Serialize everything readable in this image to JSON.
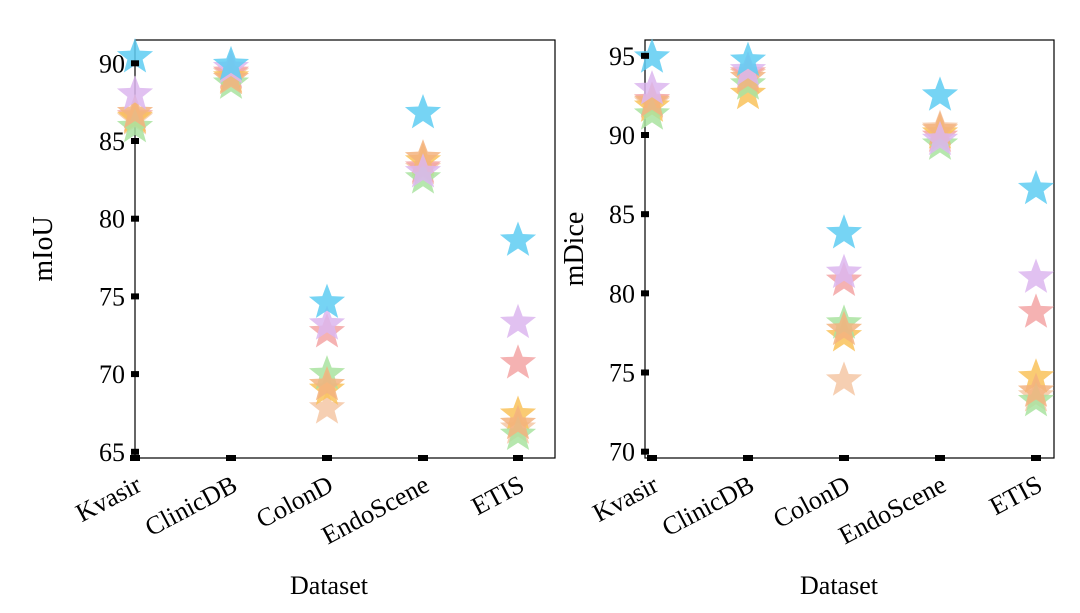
{
  "chart_data": [
    {
      "type": "scatter",
      "xlabel": "Dataset",
      "ylabel": "mIoU",
      "categories": [
        "Kvasir",
        "ClinicDB",
        "ColonD",
        "EndoScene",
        "ETIS"
      ],
      "yticks": [
        65,
        70,
        75,
        80,
        85,
        90
      ],
      "ylim": [
        64.6,
        91.5
      ],
      "grid": false,
      "series": [
        {
          "name": "",
          "color": "#f5c7a5",
          "values": [
            86.4,
            89.3,
            67.8,
            83.2,
            66.5
          ]
        },
        {
          "name": "",
          "color": "#f3a5a5",
          "values": [
            86.6,
            89.4,
            72.7,
            83.3,
            70.7
          ]
        },
        {
          "name": "",
          "color": "#f9c25a",
          "values": [
            86.5,
            89.1,
            69.0,
            83.7,
            67.4
          ]
        },
        {
          "name": "",
          "color": "#a9e3a0",
          "values": [
            85.9,
            88.7,
            70.0,
            82.6,
            66.1
          ]
        },
        {
          "name": "",
          "color": "#f3b37f",
          "values": [
            86.8,
            89.0,
            69.3,
            83.9,
            66.8
          ]
        },
        {
          "name": "",
          "color": "#dcb6ef",
          "values": [
            88.0,
            89.7,
            73.2,
            83.0,
            73.3
          ]
        },
        {
          "name": "",
          "color": "#5ecdf2",
          "values": [
            90.4,
            89.9,
            74.6,
            86.8,
            78.6
          ]
        }
      ]
    },
    {
      "type": "scatter",
      "xlabel": "Dataset",
      "ylabel": "mDice",
      "categories": [
        "Kvasir",
        "ClinicDB",
        "ColonD",
        "EndoScene",
        "ETIS"
      ],
      "yticks": [
        70,
        75,
        80,
        85,
        90,
        95
      ],
      "ylim": [
        69.6,
        96.0
      ],
      "grid": false,
      "series": [
        {
          "name": "",
          "color": "#f5c7a5",
          "values": [
            92.0,
            93.8,
            74.5,
            90.4,
            73.5
          ]
        },
        {
          "name": "",
          "color": "#f3a5a5",
          "values": [
            92.2,
            93.9,
            80.8,
            89.9,
            78.8
          ]
        },
        {
          "name": "",
          "color": "#f9c25a",
          "values": [
            91.8,
            92.6,
            77.3,
            90.1,
            74.7
          ]
        },
        {
          "name": "",
          "color": "#a9e3a0",
          "values": [
            91.3,
            93.2,
            78.1,
            89.4,
            73.2
          ]
        },
        {
          "name": "",
          "color": "#f3b37f",
          "values": [
            92.1,
            93.6,
            77.7,
            90.3,
            73.8
          ]
        },
        {
          "name": "",
          "color": "#dcb6ef",
          "values": [
            92.9,
            94.1,
            81.3,
            89.7,
            81.0
          ]
        },
        {
          "name": "",
          "color": "#5ecdf2",
          "values": [
            94.9,
            94.7,
            83.8,
            92.5,
            86.6
          ]
        }
      ]
    }
  ]
}
